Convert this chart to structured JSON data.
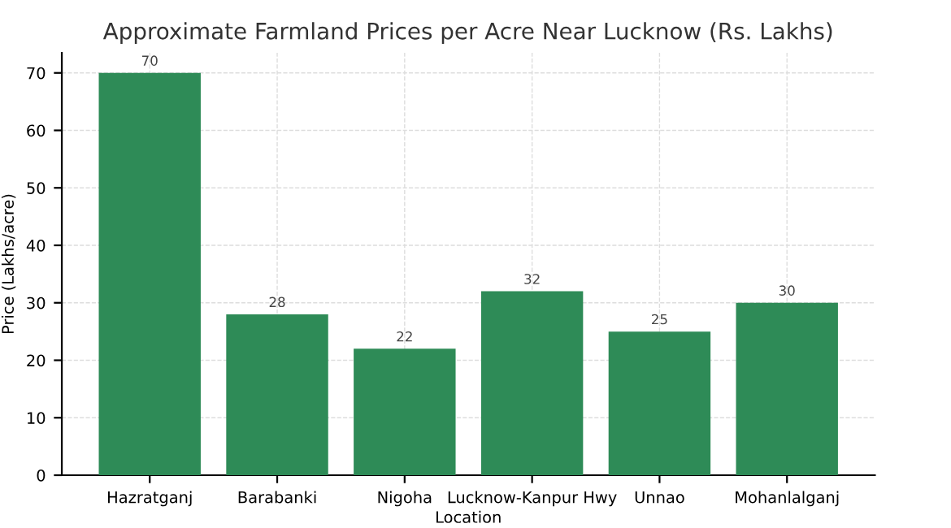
{
  "chart_data": {
    "type": "bar",
    "title": "Approximate Farmland Prices per Acre Near Lucknow (Rs. Lakhs)",
    "xlabel": "Location",
    "ylabel": "Price (Lakhs/acre)",
    "categories": [
      "Hazratganj",
      "Barabanki",
      "Nigoha",
      "Lucknow-Kanpur Hwy",
      "Unnao",
      "Mohanlalganj"
    ],
    "values": [
      70,
      28,
      22,
      32,
      25,
      30
    ],
    "color": "#2e8b57",
    "data_labels": true,
    "ylim": [
      0,
      73.5
    ],
    "yticks": [
      0,
      10,
      20,
      30,
      40,
      50,
      60,
      70
    ],
    "grid": true
  }
}
